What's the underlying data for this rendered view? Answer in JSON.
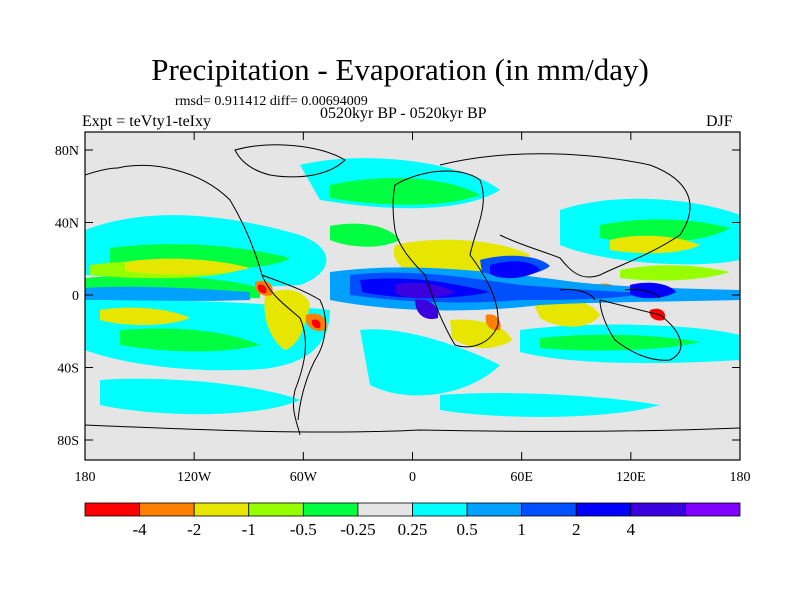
{
  "title": "Precipitation - Evaporation (in mm/day)",
  "stats": "rmsd= 0.911412 diff= 0.00694009",
  "experiment": "Expt = teVty1-teIxy",
  "period": "0520kyr BP - 0520kyr BP",
  "season": "DJF",
  "map": {
    "lat_ticks": [
      "80N",
      "40N",
      "0",
      "40S",
      "80S"
    ],
    "lon_ticks": [
      "180",
      "120W",
      "60W",
      "0",
      "60E",
      "120E",
      "180"
    ],
    "land_color": "#e5e5e5"
  },
  "colorbar": {
    "colors": [
      "#ff0000",
      "#ff8000",
      "#e6e600",
      "#96ff00",
      "#00ff40",
      "#e5e5e5",
      "#00ffff",
      "#00a0ff",
      "#0050ff",
      "#0000ff",
      "#3c00e0",
      "#8000ff"
    ],
    "labels": [
      "-4",
      "-2",
      "-1",
      "-0.5",
      "-0.25",
      "0.25",
      "0.5",
      "1",
      "2",
      "4"
    ]
  }
}
